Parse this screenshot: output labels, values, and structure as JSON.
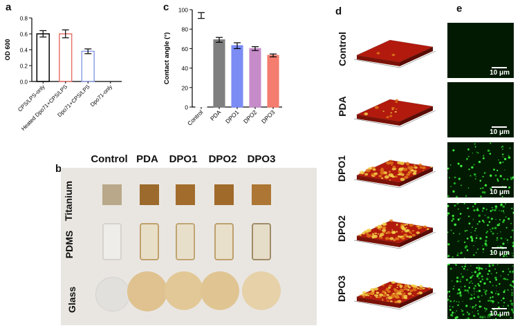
{
  "panels": {
    "a": "a",
    "b": "b",
    "c": "c",
    "d": "d",
    "e": "e"
  },
  "chart_data": [
    {
      "type": "bar",
      "panel": "a",
      "ylabel": "OD 600",
      "ylim": [
        0,
        0.8
      ],
      "yticks": [
        "0.0",
        "0.2",
        "0.4",
        "0.6",
        "0.8"
      ],
      "categories": [
        "CPS/LPS-only",
        "Heated Dpo71+CPS/LPS",
        "Dpo71+CPS/LPS",
        "Dpo71-only"
      ],
      "values": [
        0.6,
        0.6,
        0.38,
        0
      ],
      "errors": [
        0.04,
        0.05,
        0.03,
        0
      ],
      "colors": [
        "#000000",
        "#e8736b",
        "#8b9fe6",
        "#000000"
      ]
    },
    {
      "type": "bar",
      "panel": "c",
      "ylabel": "Contact angle (°)",
      "ylim": [
        0,
        100
      ],
      "yticks": [
        "0",
        "20",
        "40",
        "60",
        "80",
        "100"
      ],
      "categories": [
        "Control",
        "PDA",
        "DPO1",
        "DPO2",
        "DPO3"
      ],
      "values": [
        94,
        69,
        63,
        60,
        53
      ],
      "errors": [
        3,
        2.5,
        3,
        2,
        1.5
      ],
      "colors": [
        "#ffffff",
        "#7f7f7f",
        "#7b8cf5",
        "#c68bc9",
        "#f47d6f"
      ]
    }
  ],
  "photo": {
    "columns": [
      "Control",
      "PDA",
      "DPO1",
      "DPO2",
      "DPO3"
    ],
    "rows": [
      "Titanium",
      "PDMS",
      "Glass"
    ]
  },
  "afm": {
    "rows": [
      "Control",
      "PDA",
      "DPO1",
      "DPO2",
      "DPO3"
    ]
  },
  "fluorescence": {
    "scale_label": "10 μm",
    "green_density": [
      0,
      0,
      0.25,
      0.45,
      0.7
    ]
  }
}
